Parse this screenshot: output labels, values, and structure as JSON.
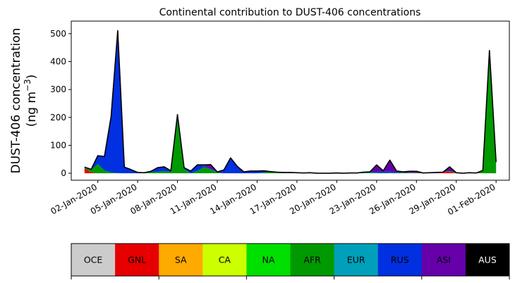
{
  "chart_data": {
    "type": "area",
    "stacked": true,
    "title": "Continental contribution to DUST-406 concentrations",
    "ylabel_line1": "DUST-406 concentration",
    "ylabel_line2": "(ng m",
    "ylabel_unit_exp": "−3",
    "ylabel_close": ")",
    "ylim": [
      -25,
      545
    ],
    "yticks": [
      0,
      100,
      200,
      300,
      400,
      500
    ],
    "ytick_labels": [
      "0",
      "100",
      "200",
      "300",
      "400",
      "500"
    ],
    "xlim": [
      "2019-12-31",
      "2020-02-02"
    ],
    "xticks": [
      "2020-01-02",
      "2020-01-05",
      "2020-01-08",
      "2020-01-11",
      "2020-01-14",
      "2020-01-17",
      "2020-01-20",
      "2020-01-23",
      "2020-01-26",
      "2020-01-29",
      "2020-02-01"
    ],
    "xtick_labels": [
      "02-Jan-2020",
      "05-Jan-2020",
      "08-Jan-2020",
      "11-Jan-2020",
      "14-Jan-2020",
      "17-Jan-2020",
      "20-Jan-2020",
      "23-Jan-2020",
      "26-Jan-2020",
      "29-Jan-2020",
      "01-Feb-2020"
    ],
    "dates": [
      "2020-01-01",
      "2020-01-01T12",
      "2020-01-02",
      "2020-01-02T12",
      "2020-01-03",
      "2020-01-03T12",
      "2020-01-04",
      "2020-01-04T12",
      "2020-01-05",
      "2020-01-05T12",
      "2020-01-06",
      "2020-01-06T12",
      "2020-01-07",
      "2020-01-07T12",
      "2020-01-08",
      "2020-01-08T12",
      "2020-01-09",
      "2020-01-09T12",
      "2020-01-10",
      "2020-01-10T12",
      "2020-01-11",
      "2020-01-11T12",
      "2020-01-12",
      "2020-01-12T12",
      "2020-01-13",
      "2020-01-13T12",
      "2020-01-14",
      "2020-01-14T12",
      "2020-01-15",
      "2020-01-15T12",
      "2020-01-16",
      "2020-01-16T12",
      "2020-01-17",
      "2020-01-17T12",
      "2020-01-18",
      "2020-01-18T12",
      "2020-01-19",
      "2020-01-19T12",
      "2020-01-20",
      "2020-01-20T12",
      "2020-01-21",
      "2020-01-21T12",
      "2020-01-22",
      "2020-01-22T12",
      "2020-01-23",
      "2020-01-23T12",
      "2020-01-24",
      "2020-01-24T12",
      "2020-01-25",
      "2020-01-25T12",
      "2020-01-26",
      "2020-01-26T12",
      "2020-01-27",
      "2020-01-27T12",
      "2020-01-28",
      "2020-01-28T12",
      "2020-01-29",
      "2020-01-29T12",
      "2020-01-30",
      "2020-01-30T12",
      "2020-01-31",
      "2020-01-31T12",
      "2020-02-01"
    ],
    "series": [
      {
        "name": "OCE",
        "color": "#cccccc",
        "values": [
          0,
          0,
          0,
          0,
          0,
          0,
          0,
          0,
          0,
          0,
          0,
          0,
          0,
          0,
          0,
          0,
          0,
          0,
          0,
          0,
          0,
          0,
          0,
          0,
          0,
          0,
          0,
          0,
          0,
          0,
          0,
          0,
          0,
          0,
          0,
          0,
          0,
          0,
          0,
          0,
          0,
          0,
          0,
          0,
          0,
          0,
          0,
          0,
          0,
          0,
          0,
          0,
          0,
          0,
          0,
          0,
          0,
          0,
          0,
          0,
          0,
          0,
          0
        ]
      },
      {
        "name": "GNL",
        "color": "#e60000",
        "values": [
          18,
          3,
          0,
          0,
          0,
          0,
          0,
          0,
          0,
          0,
          0,
          0,
          0,
          0,
          0,
          0,
          0,
          0,
          0,
          0,
          0,
          0,
          0,
          0,
          0,
          0,
          0,
          0,
          0,
          0,
          0,
          0,
          0,
          0,
          0,
          0,
          0,
          0,
          0,
          0,
          0,
          0,
          0,
          0,
          0,
          0,
          0,
          0,
          0,
          0,
          0,
          0,
          0,
          0,
          3,
          6,
          0,
          0,
          0,
          0,
          0,
          0,
          0
        ]
      },
      {
        "name": "SA",
        "color": "#ffaa00",
        "values": [
          0,
          0,
          0,
          0,
          0,
          0,
          0,
          0,
          0,
          0,
          0,
          0,
          0,
          0,
          0,
          0,
          0,
          0,
          0,
          0,
          0,
          0,
          0,
          0,
          0,
          0,
          0,
          0,
          0,
          0,
          0,
          0,
          0,
          0,
          0,
          0,
          0,
          0,
          0,
          0,
          0,
          0,
          0,
          0,
          0,
          0,
          0,
          0,
          0,
          0,
          0,
          0,
          0,
          0,
          0,
          0,
          0,
          0,
          0,
          0,
          0,
          0,
          0
        ]
      },
      {
        "name": "CA",
        "color": "#ccff00",
        "values": [
          0,
          0,
          0,
          0,
          0,
          0,
          0,
          0,
          0,
          0,
          0,
          0,
          0,
          0,
          0,
          0,
          0,
          0,
          0,
          0,
          0,
          0,
          0,
          0,
          0,
          0,
          0,
          0,
          0,
          0,
          0,
          0,
          0,
          0,
          0,
          0,
          0,
          0,
          0,
          0,
          0,
          0,
          0,
          0,
          0,
          0,
          0,
          0,
          0,
          0,
          0,
          0,
          0,
          0,
          0,
          0,
          0,
          0,
          0,
          0,
          0,
          0,
          0
        ]
      },
      {
        "name": "NA",
        "color": "#00e000",
        "values": [
          0,
          0,
          0,
          0,
          0,
          0,
          0,
          0,
          0,
          0,
          0,
          0,
          0,
          0,
          0,
          0,
          0,
          0,
          0,
          0,
          0,
          0,
          0,
          0,
          0,
          0,
          0,
          0,
          0,
          0,
          0,
          0,
          0,
          0,
          0,
          0,
          0,
          0,
          0,
          0,
          0,
          0,
          0,
          0,
          0,
          0,
          0,
          0,
          0,
          0,
          0,
          0,
          0,
          0,
          0,
          0,
          0,
          0,
          0,
          0,
          0,
          0,
          0
        ]
      },
      {
        "name": "AFR",
        "color": "#009a00",
        "values": [
          2,
          9,
          33,
          10,
          3,
          1,
          0,
          0,
          0,
          2,
          4,
          5,
          8,
          4,
          190,
          15,
          0,
          8,
          22,
          14,
          3,
          0,
          0,
          0,
          0,
          0,
          0,
          2,
          5,
          3,
          2,
          1,
          1,
          1,
          2,
          0,
          0,
          0,
          1,
          0,
          0,
          0,
          2,
          2,
          2,
          1,
          2,
          1,
          2,
          1,
          2,
          1,
          0,
          0,
          1,
          2,
          2,
          0,
          2,
          1,
          10,
          440,
          30
        ]
      },
      {
        "name": "EUR",
        "color": "#00a0bb",
        "values": [
          0,
          0,
          0,
          0,
          0,
          0,
          0,
          0,
          0,
          0,
          0,
          0,
          0,
          0,
          0,
          0,
          0,
          0,
          0,
          0,
          0,
          0,
          0,
          0,
          0,
          0,
          0,
          0,
          0,
          0,
          0,
          0,
          0,
          0,
          0,
          0,
          0,
          0,
          0,
          0,
          0,
          0,
          0,
          0,
          0,
          0,
          0,
          0,
          0,
          0,
          0,
          0,
          0,
          0,
          0,
          0,
          0,
          0,
          0,
          0,
          0,
          0,
          0
        ]
      },
      {
        "name": "RUS",
        "color": "#0030e0",
        "values": [
          2,
          2,
          30,
          50,
          200,
          510,
          22,
          13,
          3,
          0,
          3,
          15,
          15,
          5,
          20,
          5,
          8,
          22,
          5,
          2,
          2,
          12,
          55,
          25,
          5,
          6,
          8,
          6,
          1,
          1,
          1,
          2,
          1,
          0,
          0,
          0,
          0,
          0,
          0,
          0,
          1,
          1,
          2,
          3,
          3,
          6,
          5,
          2,
          1,
          1,
          0,
          0,
          2,
          1,
          0,
          0,
          0,
          0,
          0,
          0,
          0,
          0,
          0
        ]
      },
      {
        "name": "ASI",
        "color": "#6600aa",
        "values": [
          0,
          0,
          0,
          0,
          0,
          0,
          0,
          0,
          0,
          0,
          0,
          0,
          0,
          0,
          0,
          0,
          0,
          0,
          3,
          15,
          0,
          0,
          0,
          0,
          0,
          2,
          0,
          1,
          0,
          0,
          0,
          0,
          0,
          0,
          0,
          0,
          0,
          0,
          0,
          0,
          0,
          0,
          0,
          0,
          25,
          2,
          40,
          5,
          2,
          5,
          5,
          0,
          0,
          2,
          0,
          15,
          0,
          0,
          0,
          0,
          0,
          0,
          10
        ]
      },
      {
        "name": "AUS",
        "color": "#000000",
        "values": [
          0,
          0,
          0,
          0,
          0,
          0,
          0,
          0,
          0,
          0,
          0,
          0,
          0,
          0,
          0,
          0,
          0,
          0,
          0,
          0,
          0,
          0,
          0,
          0,
          0,
          0,
          0,
          0,
          0,
          0,
          0,
          0,
          0,
          0,
          0,
          0,
          0,
          0,
          0,
          0,
          0,
          0,
          0,
          0,
          0,
          0,
          0,
          0,
          0,
          0,
          0,
          0,
          0,
          0,
          0,
          0,
          0,
          0,
          0,
          0,
          0,
          0,
          0
        ]
      }
    ],
    "legend": [
      {
        "label": "OCE",
        "color": "#cccccc",
        "text_color": "#000000"
      },
      {
        "label": "GNL",
        "color": "#e60000",
        "text_color": "#000000"
      },
      {
        "label": "SA",
        "color": "#ffaa00",
        "text_color": "#000000"
      },
      {
        "label": "CA",
        "color": "#ccff00",
        "text_color": "#000000"
      },
      {
        "label": "NA",
        "color": "#00e000",
        "text_color": "#000000"
      },
      {
        "label": "AFR",
        "color": "#009a00",
        "text_color": "#000000"
      },
      {
        "label": "EUR",
        "color": "#00a0bb",
        "text_color": "#000000"
      },
      {
        "label": "RUS",
        "color": "#0030e0",
        "text_color": "#000000"
      },
      {
        "label": "ASI",
        "color": "#6600aa",
        "text_color": "#000000"
      },
      {
        "label": "AUS",
        "color": "#000000",
        "text_color": "#ffffff"
      }
    ],
    "legend_placement": "bottom",
    "grid": false
  }
}
